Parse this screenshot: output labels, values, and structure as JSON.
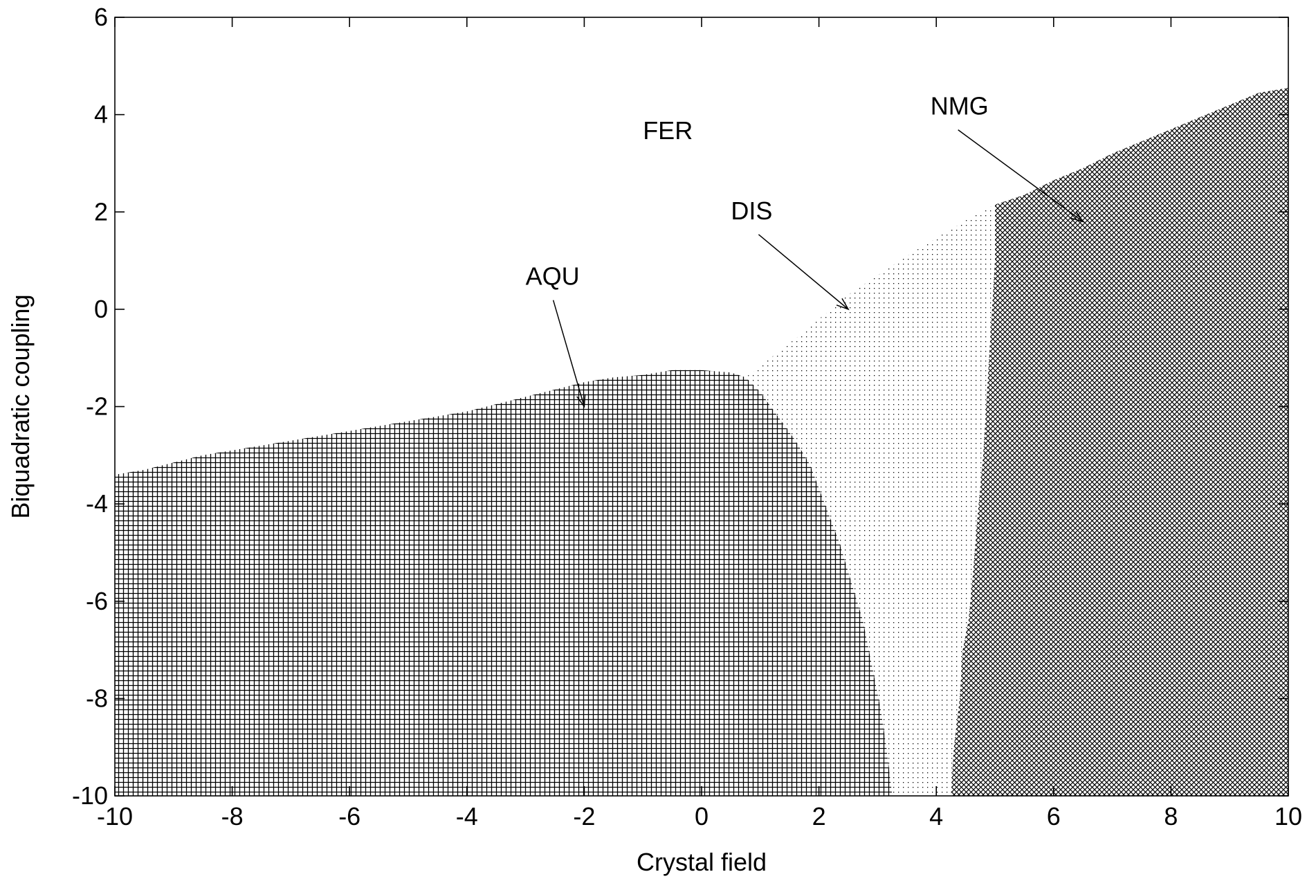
{
  "chart_data": {
    "type": "heatmap",
    "title": "",
    "xlabel": "Crystal field",
    "ylabel": "Biquadratic coupling",
    "xlim": [
      -10,
      10
    ],
    "ylim": [
      -10,
      6
    ],
    "xticks": [
      "-10",
      "-8",
      "-6",
      "-4",
      "-2",
      "0",
      "2",
      "4",
      "6",
      "8",
      "10"
    ],
    "yticks": [
      "-10",
      "-8",
      "-6",
      "-4",
      "-2",
      "0",
      "2",
      "4",
      "6"
    ],
    "grid": false,
    "legend": "none",
    "phases": [
      {
        "name": "FER",
        "pattern": "empty",
        "label_pos": [
          -1,
          3.5
        ]
      },
      {
        "name": "AQU",
        "pattern": "plus",
        "label_pos": [
          -3,
          0.5
        ],
        "arrow_to": [
          -2,
          -2
        ],
        "boundary_top": [
          [
            -10,
            -3.4
          ],
          [
            -9.5,
            -3.3
          ],
          [
            -9,
            -3.15
          ],
          [
            -8.5,
            -3.0
          ],
          [
            -8,
            -2.9
          ],
          [
            -7.5,
            -2.8
          ],
          [
            -7,
            -2.7
          ],
          [
            -6.5,
            -2.6
          ],
          [
            -6,
            -2.5
          ],
          [
            -5.5,
            -2.4
          ],
          [
            -5,
            -2.3
          ],
          [
            -4.5,
            -2.2
          ],
          [
            -4,
            -2.1
          ],
          [
            -3.5,
            -1.95
          ],
          [
            -3,
            -1.8
          ],
          [
            -2.5,
            -1.65
          ],
          [
            -2,
            -1.5
          ],
          [
            -1.5,
            -1.4
          ],
          [
            -1,
            -1.35
          ],
          [
            -0.5,
            -1.25
          ],
          [
            0,
            -1.25
          ],
          [
            0.5,
            -1.3
          ],
          [
            0.75,
            -1.4
          ]
        ],
        "boundary_right": [
          [
            0.75,
            -1.4
          ],
          [
            1.0,
            -1.7
          ],
          [
            1.3,
            -2.2
          ],
          [
            1.6,
            -2.7
          ],
          [
            1.85,
            -3.2
          ],
          [
            2.1,
            -4.0
          ],
          [
            2.35,
            -4.8
          ],
          [
            2.55,
            -5.6
          ],
          [
            2.75,
            -6.4
          ],
          [
            2.9,
            -7.3
          ],
          [
            3.05,
            -8.2
          ],
          [
            3.15,
            -9.0
          ],
          [
            3.25,
            -10
          ]
        ]
      },
      {
        "name": "DIS",
        "pattern": "dots",
        "label_pos": [
          0.5,
          1.85
        ],
        "arrow_to": [
          2.5,
          0
        ],
        "boundary_top": [
          [
            0.75,
            -1.4
          ],
          [
            1.6,
            -0.6
          ],
          [
            2.5,
            0.3
          ],
          [
            3.5,
            1.1
          ],
          [
            4.6,
            1.9
          ],
          [
            4.9,
            2.1
          ]
        ]
      },
      {
        "name": "NMG",
        "pattern": "cross",
        "label_pos": [
          3.9,
          4.0
        ],
        "arrow_to": [
          6.5,
          1.8
        ],
        "boundary_left": [
          [
            4.25,
            -10
          ],
          [
            4.3,
            -9.0
          ],
          [
            4.4,
            -8.0
          ],
          [
            4.45,
            -7.0
          ],
          [
            4.55,
            -6.4
          ],
          [
            4.62,
            -5.5
          ],
          [
            4.7,
            -4.3
          ],
          [
            4.8,
            -3.0
          ],
          [
            4.85,
            -2.0
          ],
          [
            4.9,
            -1.0
          ],
          [
            4.95,
            0.0
          ],
          [
            5.0,
            1.0
          ],
          [
            5.0,
            2.15
          ]
        ],
        "boundary_top": [
          [
            5.0,
            2.15
          ],
          [
            5.5,
            2.35
          ],
          [
            6.0,
            2.65
          ],
          [
            6.5,
            2.9
          ],
          [
            7.0,
            3.2
          ],
          [
            7.5,
            3.45
          ],
          [
            8.0,
            3.7
          ],
          [
            8.5,
            3.95
          ],
          [
            9.0,
            4.2
          ],
          [
            9.5,
            4.45
          ],
          [
            10,
            4.55
          ]
        ]
      }
    ],
    "colors": {
      "axes": "#000000",
      "pattern": "#000000",
      "background": "#ffffff"
    }
  }
}
